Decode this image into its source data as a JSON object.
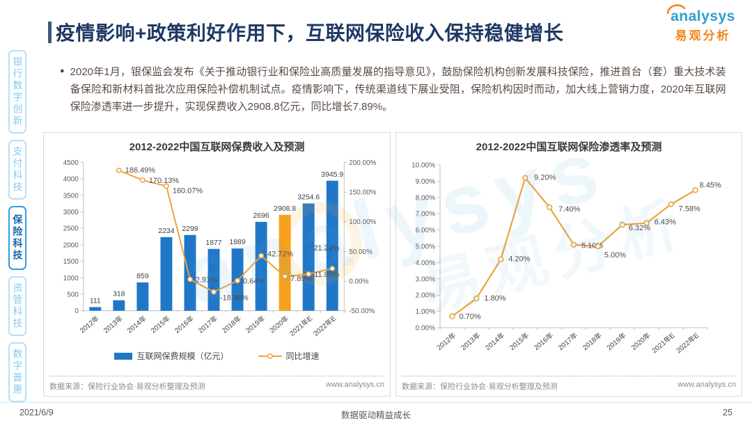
{
  "header": {
    "title": "疫情影响+政策利好作用下，互联网保险收入保持稳健增长",
    "logo_en": "analysys",
    "logo_cn": "易观分析"
  },
  "watermark": {
    "en": "analysys",
    "cn": "易观分析"
  },
  "sidebar": {
    "items": [
      {
        "label": "银行数字创新",
        "active": false
      },
      {
        "label": "支付科技",
        "active": false
      },
      {
        "label": "保险科技",
        "active": true
      },
      {
        "label": "资管科技",
        "active": false
      },
      {
        "label": "数字普惠",
        "active": false
      }
    ]
  },
  "bullet": {
    "text": "2020年1月，银保监会发布《关于推动银行业和保险业高质量发展的指导意见》，鼓励保险机构创新发展科技保险，推进首台（套）重大技术装备保险和新材料首批次应用保险补偿机制试点。疫情影响下，传统渠道线下展业受阻，保险机构因时而动，加大线上营销力度，2020年互联网保险渗透率进一步提升，实现保费收入2908.8亿元，同比增长7.89%。"
  },
  "chart_data": [
    {
      "type": "bar+line",
      "title": "2012-2022中国互联网保费收入及预测",
      "categories": [
        "2012年",
        "2013年",
        "2014年",
        "2015年",
        "2016年",
        "2017年",
        "2018年",
        "2019年",
        "2020年",
        "2021年E",
        "2022年E"
      ],
      "series": [
        {
          "name": "互联网保费规模（亿元）",
          "type": "bar",
          "values": [
            111,
            318,
            859,
            2234,
            2299,
            1877,
            1889,
            2696,
            2908.8,
            3254.6,
            3945.9
          ],
          "labels": [
            "111",
            "318",
            "859",
            "2234",
            "2299",
            "1877",
            "1889",
            "2696",
            "2908.8",
            "3254.6",
            "3945.9"
          ],
          "highlight_index": 8
        },
        {
          "name": "同比增速",
          "type": "line",
          "values": [
            null,
            186.49,
            170.13,
            160.07,
            2.91,
            -18.36,
            0.64,
            42.72,
            7.89,
            11.89,
            21.24
          ],
          "labels": [
            null,
            "186.49%",
            "170.13%",
            "160.07%",
            "2.91%",
            "-18.36%",
            "0.64%",
            "42.72%",
            "7.89%",
            "11.89%",
            "21.24%"
          ]
        }
      ],
      "left_axis": {
        "min": 0,
        "max": 4500,
        "step": 500
      },
      "right_axis": {
        "min": -50,
        "max": 200,
        "step": 50,
        "suffix": "%"
      },
      "grid": false,
      "legend_position": "bottom",
      "source": "数据来源：保险行业协会·易观分析整理及预测",
      "site": "www.analysys.cn"
    },
    {
      "type": "line",
      "title": "2012-2022中国互联网保险渗透率及预测",
      "categories": [
        "2012年",
        "2013年",
        "2014年",
        "2015年",
        "2016年",
        "2017年",
        "2018年",
        "2019年",
        "2020年",
        "2021年E",
        "2022年E"
      ],
      "values": [
        0.7,
        1.8,
        4.2,
        9.2,
        7.4,
        5.1,
        5.0,
        6.32,
        6.43,
        7.58,
        8.45
      ],
      "labels": [
        "0.70%",
        "1.80%",
        "4.20%",
        "9.20%",
        "7.40%",
        "5.10%",
        "5.00%",
        "6.32%",
        "6.43%",
        "7.58%",
        "8.45%"
      ],
      "y_axis": {
        "min": 0,
        "max": 10,
        "step": 1,
        "suffix": "%"
      },
      "grid": false,
      "source": "数据来源：保险行业协会·易观分析整理及预测",
      "site": "www.analysys.cn"
    }
  ],
  "footer": {
    "date": "2021/6/9",
    "slogan": "数据驱动精益成长",
    "page": "25"
  },
  "colors": {
    "bar_blue": "#2077C8",
    "bar_highlight": "#F8A11C",
    "line_orange": "#EFA23B",
    "marker_fill": "#FFFFFF",
    "axis_line": "#BFBFBF",
    "axis_text": "#595959",
    "label_text": "#3F3F3F",
    "line_label_text": "#4A4A4A",
    "title_navy": "#1F3864",
    "sidebar_active": "#1565AD",
    "sidebar_inactive": "#85CBF0",
    "logo_blue": "#2E9FD0",
    "logo_orange": "#F08519"
  }
}
